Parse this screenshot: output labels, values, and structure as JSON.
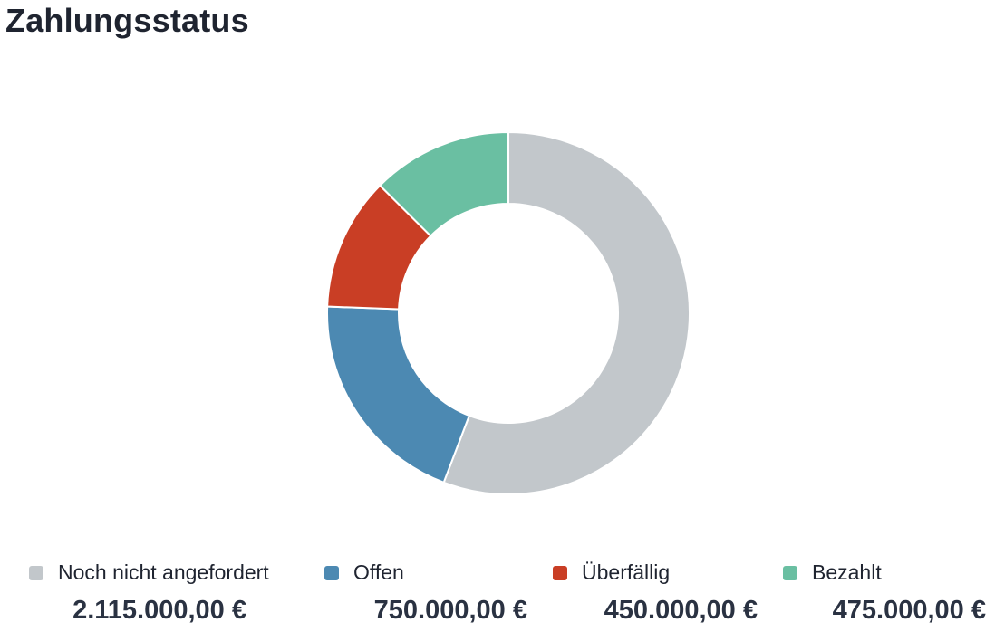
{
  "header": {
    "title": "Zahlungsstatus"
  },
  "chart_data": {
    "type": "pie",
    "variant": "donut",
    "categories": [
      "Noch nicht angefordert",
      "Offen",
      "Überfällig",
      "Bezahlt"
    ],
    "values": [
      2115000,
      750000,
      450000,
      475000
    ],
    "value_labels": [
      "2.115.000,00 €",
      "750.000,00 €",
      "450.000,00 €",
      "475.000,00 €"
    ],
    "colors": [
      "#c2c7cb",
      "#4c89b2",
      "#c93e25",
      "#6abfa2"
    ],
    "start_angle_deg": 0,
    "direction": "clockwise",
    "legend_position": "bottom",
    "title": "Zahlungsstatus"
  }
}
